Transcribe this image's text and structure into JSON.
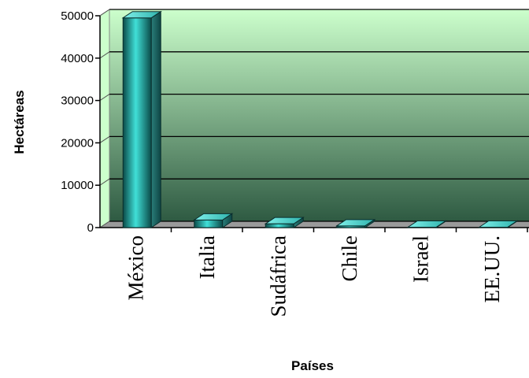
{
  "chart_data": {
    "type": "bar",
    "title": "",
    "xlabel": "Países",
    "ylabel": "Hectáreas",
    "categories": [
      "México",
      "Italia",
      "Sudáfrica",
      "Chile",
      "Israel",
      "EE.UU."
    ],
    "values": [
      49500,
      1800,
      900,
      400,
      100,
      50
    ],
    "ylim": [
      0,
      50000
    ],
    "yticks": [
      "0",
      "10000",
      "20000",
      "30000",
      "40000",
      "50000"
    ],
    "grid": true,
    "style": "3d",
    "colors": {
      "bar_light": "#40e0d8",
      "bar_dark": "#0a4a48",
      "wall_top": "#ccffcc",
      "wall_bottom": "#2e5a42"
    }
  }
}
